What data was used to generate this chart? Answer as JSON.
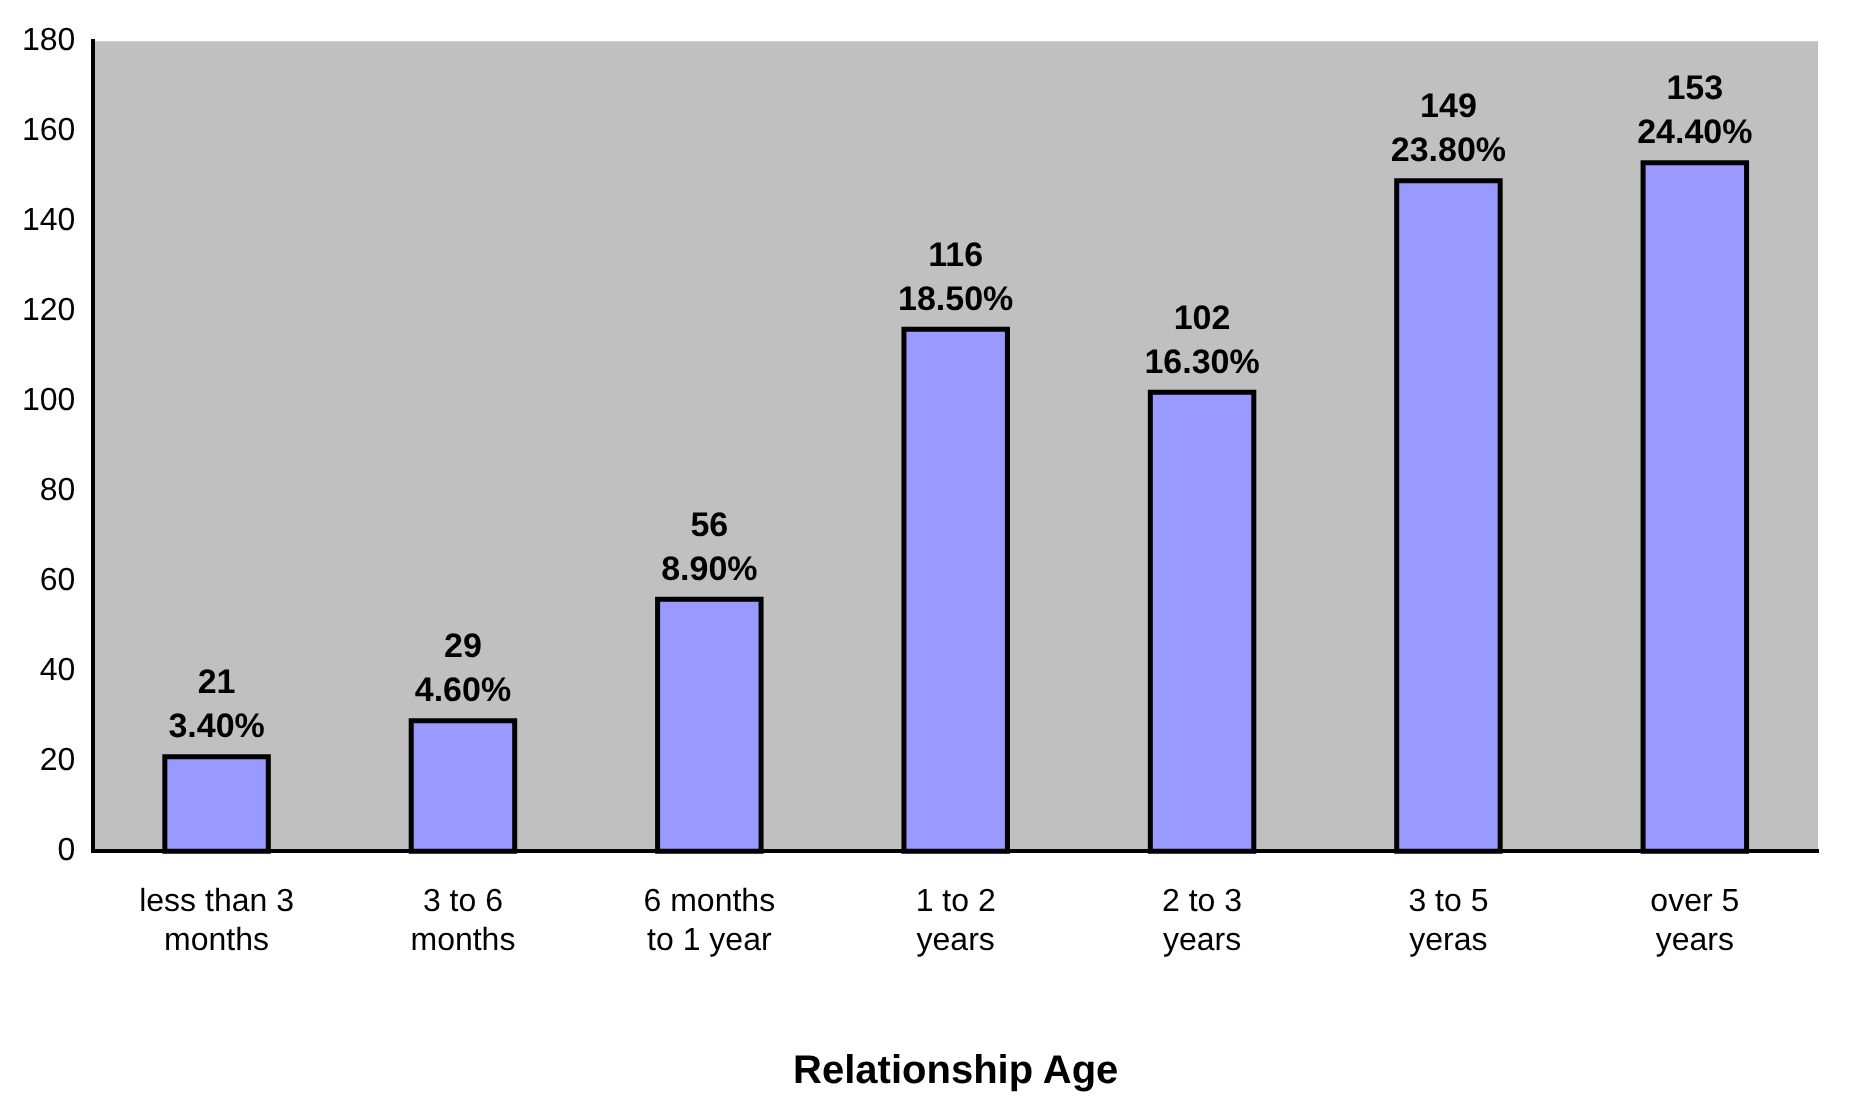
{
  "chart_data": {
    "type": "bar",
    "xlabel": "Relationship Age",
    "categories": [
      "less than 3\nmonths",
      "3 to 6\nmonths",
      "6 months\nto 1 year",
      "1 to 2\nyears",
      "2 to 3\nyears",
      "3 to 5\nyeras",
      "over 5\nyears"
    ],
    "values": [
      21,
      29,
      56,
      116,
      102,
      149,
      153
    ],
    "color": "#9999ff",
    "value_labels": [
      "21\n3.40%",
      "29\n4.60%",
      "56\n8.90%",
      "116\n18.50%",
      "102\n16.30%",
      "149\n23.80%",
      "153\n24.40%"
    ],
    "ylim": [
      0,
      180
    ],
    "yticks": [
      0,
      20,
      40,
      60,
      80,
      100,
      120,
      140,
      160,
      180
    ],
    "grid": false,
    "legend": false
  }
}
